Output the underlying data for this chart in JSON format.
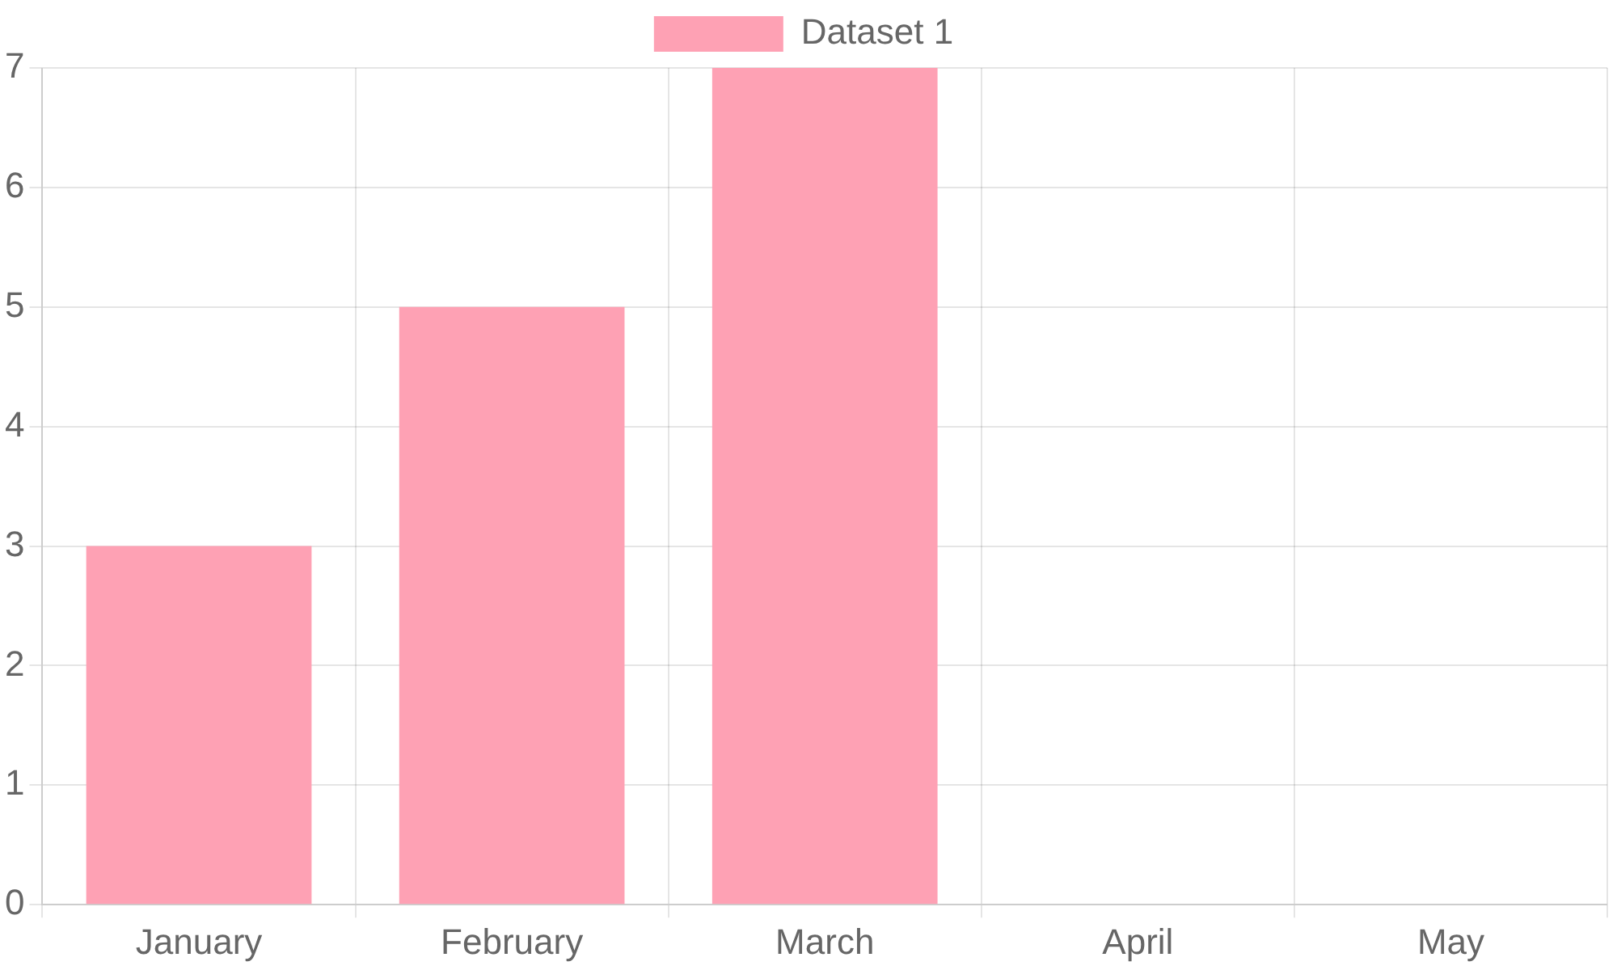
{
  "chart_data": {
    "type": "bar",
    "categories": [
      "January",
      "February",
      "March",
      "April",
      "May"
    ],
    "series": [
      {
        "name": "Dataset 1",
        "color": "#fea1b4",
        "values": [
          3,
          5,
          7,
          null,
          null
        ]
      }
    ],
    "ylim": [
      0,
      7
    ],
    "yticks": [
      0,
      1,
      2,
      3,
      4,
      5,
      6,
      7
    ],
    "grid": true,
    "legend": "top"
  }
}
